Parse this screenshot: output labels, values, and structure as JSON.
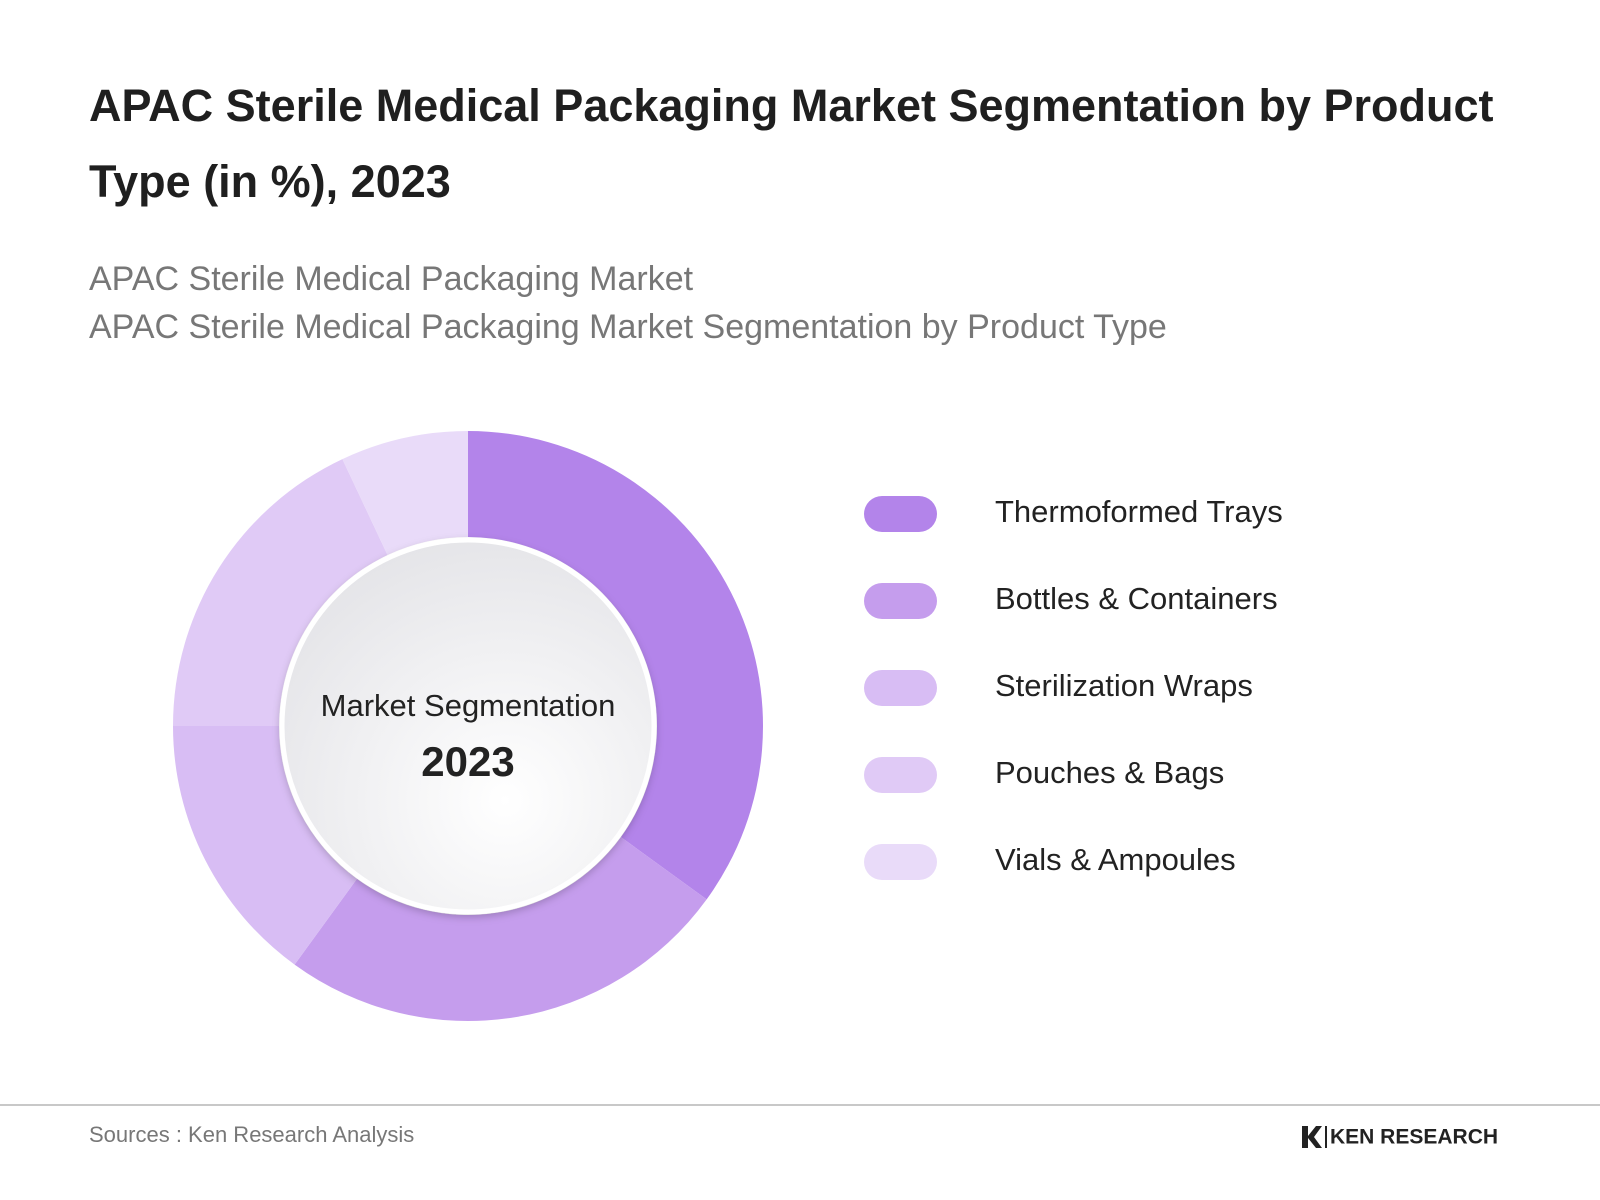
{
  "chart_data": {
    "type": "donut",
    "title": "APAC Sterile Medical Packaging Market Segmentation by Product Type (in %), 2023",
    "subtitle": [
      "APAC Sterile Medical Packaging Market",
      "APAC Sterile Medical Packaging Market Segmentation by Product Type"
    ],
    "center_label": "Market Segmentation",
    "center_year": "2023",
    "categories": [
      "Thermoformed Trays",
      "Bottles & Containers",
      "Sterilization Wraps",
      "Pouches & Bags",
      "Vials & Ampoules"
    ],
    "values": [
      35,
      25,
      15,
      18,
      7
    ],
    "colors": [
      "#b384ea",
      "#c59ded",
      "#d8bdf4",
      "#e0caf6",
      "#e9dbf9"
    ],
    "source": "Sources : Ken Research Analysis",
    "brand": "KEN RESEARCH"
  }
}
